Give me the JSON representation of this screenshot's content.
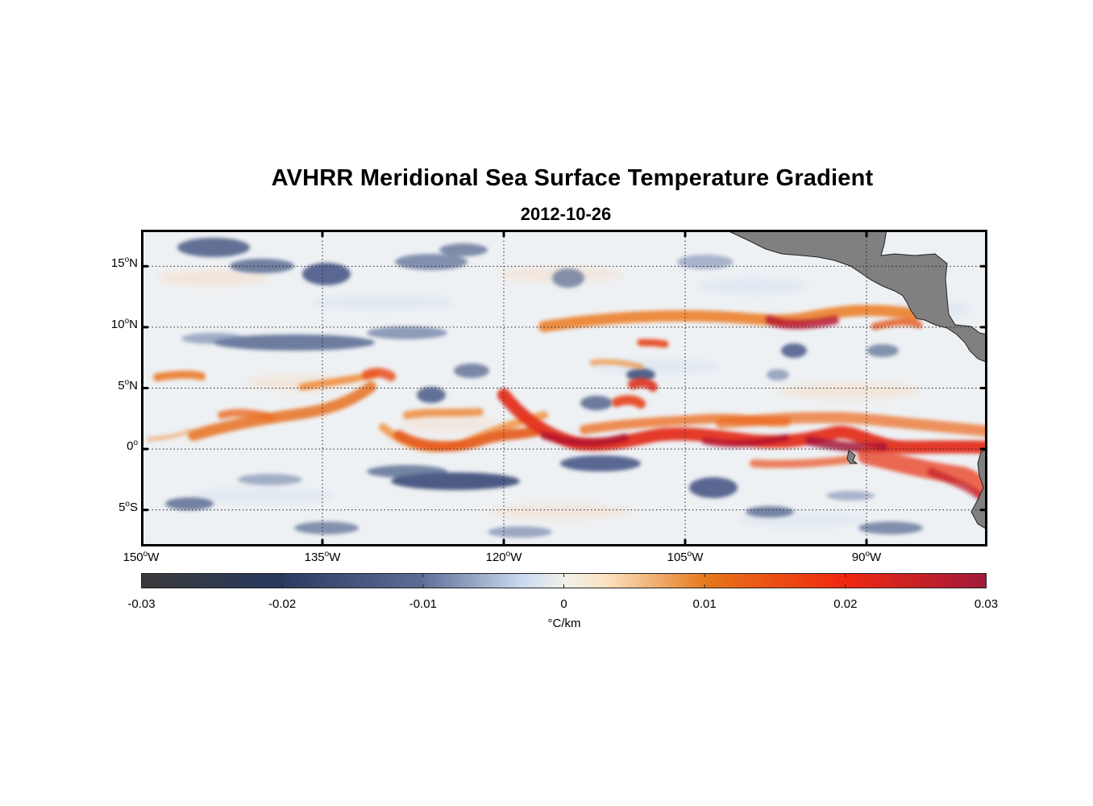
{
  "title": "AVHRR Meridional Sea Surface Temperature Gradient",
  "subtitle": "2012-10-26",
  "colorbar": {
    "unit": "°C/km",
    "ticks": [
      "-0.03",
      "-0.02",
      "-0.01",
      "0",
      "0.01",
      "0.02",
      "0.03"
    ],
    "colors": [
      "#3a3a3a",
      "#28395e",
      "#5b6d96",
      "#c9d9ee",
      "#f0f0ea",
      "#fbe3c0",
      "#e5761a",
      "#f02810",
      "#a21a3a"
    ]
  },
  "map": {
    "lon_range": [
      -150,
      -80
    ],
    "lat_range": [
      -8,
      18
    ],
    "lat_ticks": [
      {
        "value": 15,
        "label": "15"
      },
      {
        "value": 10,
        "label": "10"
      },
      {
        "value": 5,
        "label": "5"
      },
      {
        "value": 0,
        "label": "0"
      },
      {
        "value": -5,
        "label": "5"
      }
    ],
    "lat_suffix": {
      "15": "N",
      "10": "N",
      "5": "N",
      "0": "",
      "-5": "S"
    },
    "lon_ticks": [
      {
        "value": -150,
        "label": "150"
      },
      {
        "value": -135,
        "label": "135"
      },
      {
        "value": -120,
        "label": "120"
      },
      {
        "value": -105,
        "label": "105"
      },
      {
        "value": -90,
        "label": "90"
      }
    ],
    "lon_suffix": "W",
    "degree_mark": "o",
    "land_color": "#808080",
    "grid": "dotted"
  }
}
